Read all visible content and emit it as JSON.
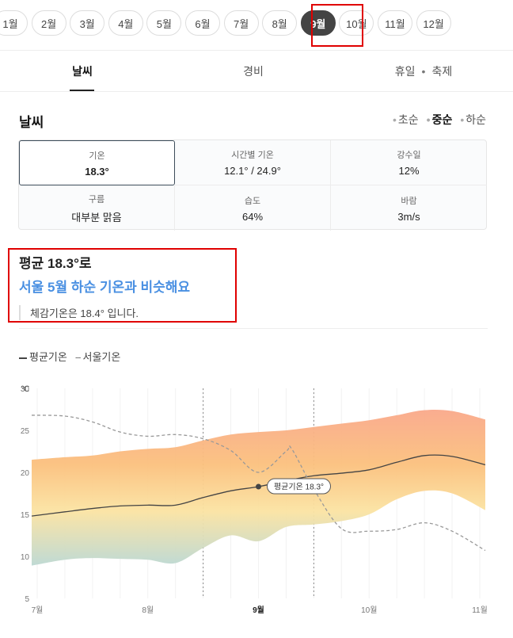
{
  "months": {
    "items": [
      "1월",
      "2월",
      "3월",
      "4월",
      "5월",
      "6월",
      "7월",
      "8월",
      "9월",
      "10월",
      "11월",
      "12월"
    ],
    "selected_index": 8
  },
  "tabs": {
    "weather": "날씨",
    "cost": "경비",
    "holiday": "휴일",
    "festival": "축제"
  },
  "weather": {
    "title": "날씨",
    "periods": [
      "초순",
      "중순",
      "하순"
    ],
    "selected_period_index": 1,
    "stats": [
      {
        "label": "기온",
        "value": "18.3°"
      },
      {
        "label": "시간별 기온",
        "value": "12.1° / 24.9°"
      },
      {
        "label": "강수일",
        "value": "12%"
      },
      {
        "label": "구름",
        "value": "대부분 맑음"
      },
      {
        "label": "습도",
        "value": "64%"
      },
      {
        "label": "바람",
        "value": "3m/s"
      }
    ]
  },
  "summary": {
    "line1": "평균 18.3°로",
    "line2": "서울 5월 하순 기온과 비슷해요",
    "line3": "체감기온은 18.4° 입니다."
  },
  "legend": {
    "avg": "평균기온",
    "seoul": "서울기온"
  },
  "chart_data": {
    "type": "line",
    "ylabel": "℃",
    "ylim": [
      5,
      30
    ],
    "yticks": [
      5,
      10,
      15,
      20,
      25,
      30
    ],
    "xlim": [
      0,
      4
    ],
    "xticks": [
      {
        "x": 0,
        "label": "7월"
      },
      {
        "x": 1,
        "label": "8월"
      },
      {
        "x": 2,
        "label": "9월",
        "bold": true
      },
      {
        "x": 3,
        "label": "10월"
      },
      {
        "x": 4,
        "label": "11월"
      }
    ],
    "selected_range": [
      1.5,
      2.5
    ],
    "band": {
      "x": [
        -0.05,
        0.25,
        0.5,
        0.75,
        1.0,
        1.25,
        1.5,
        1.75,
        2.0,
        2.25,
        2.5,
        2.75,
        3.0,
        3.25,
        3.5,
        3.75,
        4.05
      ],
      "high": [
        21.5,
        21.8,
        22.0,
        22.5,
        22.8,
        23.0,
        23.8,
        24.5,
        24.8,
        25.0,
        25.4,
        25.8,
        26.2,
        26.8,
        27.4,
        27.3,
        26.3
      ],
      "low": [
        8.9,
        9.6,
        9.8,
        9.7,
        9.6,
        9.2,
        11.0,
        12.5,
        11.8,
        13.5,
        13.8,
        14.2,
        15.0,
        16.8,
        17.8,
        17.5,
        15.5
      ]
    },
    "series": [
      {
        "name": "평균기온",
        "style": "solid",
        "color": "#444444",
        "x": [
          -0.05,
          0.25,
          0.5,
          0.75,
          1.0,
          1.25,
          1.5,
          1.75,
          2.0,
          2.25,
          2.5,
          2.75,
          3.0,
          3.25,
          3.5,
          3.75,
          4.05
        ],
        "y": [
          14.8,
          15.3,
          15.7,
          16.0,
          16.1,
          16.1,
          17.0,
          17.8,
          18.3,
          19.0,
          19.6,
          19.9,
          20.3,
          21.2,
          22.0,
          21.9,
          20.9
        ]
      },
      {
        "name": "서울기온",
        "style": "dashed",
        "color": "#999999",
        "x": [
          -0.05,
          0.25,
          0.5,
          0.75,
          1.0,
          1.25,
          1.5,
          1.75,
          2.0,
          2.25,
          2.3,
          2.5,
          2.75,
          3.0,
          3.25,
          3.5,
          3.75,
          4.05
        ],
        "y": [
          26.8,
          26.7,
          26.0,
          24.8,
          24.3,
          24.5,
          24.0,
          22.6,
          20.0,
          22.5,
          22.8,
          18.0,
          13.3,
          13.0,
          13.2,
          14.0,
          13.0,
          10.7
        ]
      }
    ],
    "marker": {
      "x": 2.0,
      "y": 18.3,
      "label": "평균기온 18.3°"
    }
  },
  "colors": {
    "accent": "#4a90e2",
    "active_chip": "#444444",
    "highlight": "#e00000"
  }
}
